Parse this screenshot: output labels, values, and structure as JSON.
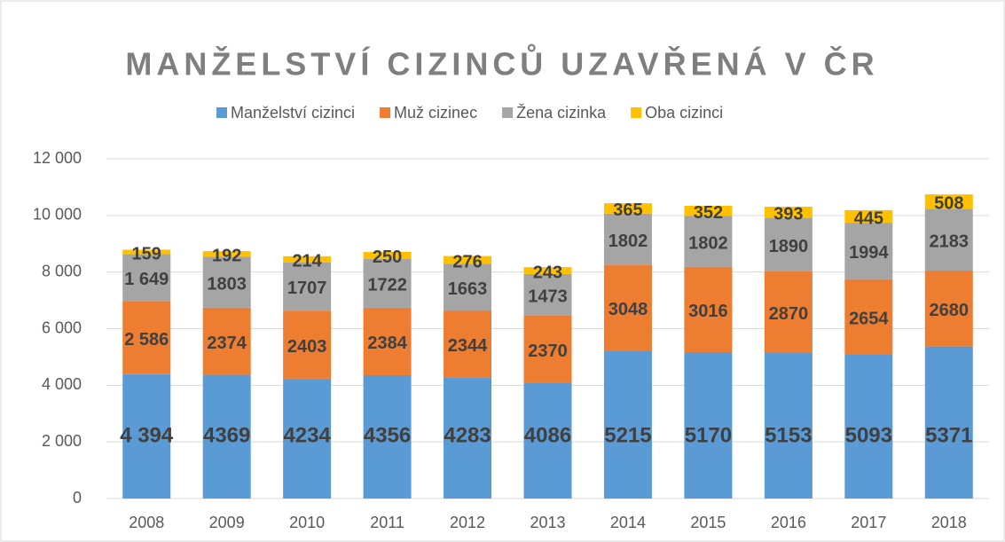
{
  "chart_data": {
    "type": "stacked_bar",
    "title": "MANŽELSTVÍ CIZINCŮ UZAVŘENÁ V ČR",
    "categories": [
      "2008",
      "2009",
      "2010",
      "2011",
      "2012",
      "2013",
      "2014",
      "2015",
      "2016",
      "2017",
      "2018"
    ],
    "series": [
      {
        "name": "Manželství cizinci",
        "color": "#5b9bd5",
        "values": [
          4394,
          4369,
          4234,
          4356,
          4283,
          4086,
          5215,
          5170,
          5153,
          5093,
          5371
        ],
        "value_labels": [
          "4 394",
          "4369",
          "4234",
          "4356",
          "4283",
          "4086",
          "5215",
          "5170",
          "5153",
          "5093",
          "5371"
        ]
      },
      {
        "name": "Muž cizinec",
        "color": "#ed7d31",
        "values": [
          2586,
          2374,
          2403,
          2384,
          2344,
          2370,
          3048,
          3016,
          2870,
          2654,
          2680
        ],
        "value_labels": [
          "2 586",
          "2374",
          "2403",
          "2384",
          "2344",
          "2370",
          "3048",
          "3016",
          "2870",
          "2654",
          "2680"
        ]
      },
      {
        "name": "Žena cizinka",
        "color": "#a5a5a5",
        "values": [
          1649,
          1803,
          1707,
          1722,
          1663,
          1473,
          1802,
          1802,
          1890,
          1994,
          2183
        ],
        "value_labels": [
          "1 649",
          "1803",
          "1707",
          "1722",
          "1663",
          "1473",
          "1802",
          "1802",
          "1890",
          "1994",
          "2183"
        ]
      },
      {
        "name": "Oba cizinci",
        "color": "#ffc000",
        "values": [
          159,
          192,
          214,
          250,
          276,
          243,
          365,
          352,
          393,
          445,
          508
        ]
      }
    ],
    "ylim": [
      0,
      12000
    ],
    "yticks": [
      0,
      {
        "value": 2000,
        "label": "2 000"
      },
      {
        "value": 4000,
        "label": "4 000"
      },
      {
        "value": 6000,
        "label": "6 000"
      },
      {
        "value": 8000,
        "label": "8 000"
      },
      {
        "value": 10000,
        "label": "10 000"
      },
      {
        "value": 12000,
        "label": "12 000"
      }
    ],
    "grid": true,
    "legend": "top"
  }
}
